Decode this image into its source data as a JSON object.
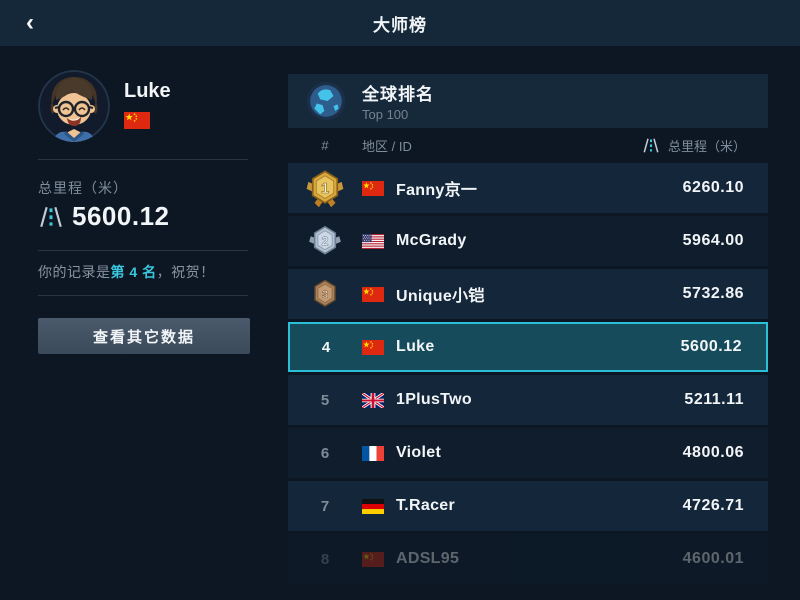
{
  "top_bar": {
    "back_icon": "‹",
    "title": "大师榜"
  },
  "profile": {
    "name": "Luke",
    "country": "cn",
    "mileage_label": "总里程（米）",
    "mileage_value": "5600.12",
    "record_prefix": "你的记录是",
    "record_rank": "第 4 名",
    "record_suffix": "，祝贺！",
    "button_label": "查看其它数据"
  },
  "leaderboard": {
    "title": "全球排名",
    "subtitle": "Top 100",
    "columns": {
      "rank": "#",
      "region_id": "地区 / ID",
      "mileage": "总里程（米）"
    },
    "rows": [
      {
        "rank": "1",
        "medal": "gold",
        "flag": "cn",
        "name": "Fanny京一",
        "value": "6260.10",
        "highlighted": false,
        "faded": false
      },
      {
        "rank": "2",
        "medal": "silver",
        "flag": "us",
        "name": "McGrady",
        "value": "5964.00",
        "highlighted": false,
        "faded": false
      },
      {
        "rank": "3",
        "medal": "bronze",
        "flag": "cn",
        "name": "Unique小铠",
        "value": "5732.86",
        "highlighted": false,
        "faded": false
      },
      {
        "rank": "4",
        "medal": null,
        "flag": "cn",
        "name": "Luke",
        "value": "5600.12",
        "highlighted": true,
        "faded": false
      },
      {
        "rank": "5",
        "medal": null,
        "flag": "gb",
        "name": "1PlusTwo",
        "value": "5211.11",
        "highlighted": false,
        "faded": false
      },
      {
        "rank": "6",
        "medal": null,
        "flag": "fr",
        "name": "Violet",
        "value": "4800.06",
        "highlighted": false,
        "faded": false
      },
      {
        "rank": "7",
        "medal": null,
        "flag": "de",
        "name": "T.Racer",
        "value": "4726.71",
        "highlighted": false,
        "faded": false
      },
      {
        "rank": "8",
        "medal": null,
        "flag": "cn",
        "name": "ADSL95",
        "value": "4600.01",
        "highlighted": false,
        "faded": true
      }
    ]
  },
  "colors": {
    "accent": "#3bc6dd",
    "highlight_border": "#2bc0d8",
    "highlight_bg": "#164b5c",
    "row_light": "#142639",
    "row_dark": "#0f1d2d",
    "page_bg": "#0c1723",
    "top_bar_bg": "#152839"
  }
}
